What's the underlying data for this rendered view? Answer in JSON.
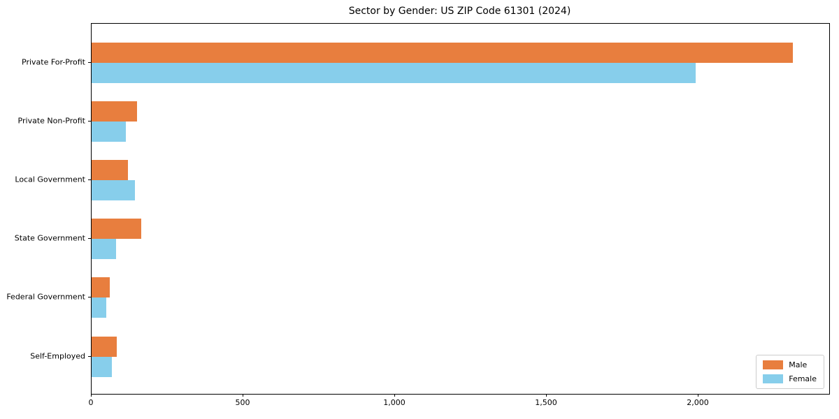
{
  "chart_data": {
    "type": "bar",
    "orientation": "horizontal",
    "title": "Sector by Gender: US ZIP Code 61301 (2024)",
    "xlabel": "",
    "ylabel": "",
    "categories": [
      "Private For-Profit",
      "Private Non-Profit",
      "Local Government",
      "State Government",
      "Federal Government",
      "Self-Employed"
    ],
    "series": [
      {
        "name": "Male",
        "color": "#e87e3e",
        "values": [
          2310,
          150,
          120,
          164,
          60,
          83
        ]
      },
      {
        "name": "Female",
        "color": "#87ceeb",
        "values": [
          1990,
          112,
          143,
          81,
          48,
          67
        ]
      }
    ],
    "xlim": [
      0,
      2430
    ],
    "xticks": [
      0,
      500,
      1000,
      1500,
      2000
    ],
    "xtick_labels": [
      "0",
      "500",
      "1,000",
      "1,500",
      "2,000"
    ],
    "grid": false,
    "legend_position": "lower right",
    "legend_labels": [
      "Male",
      "Female"
    ]
  },
  "style": {
    "male_color": "#e87e3e",
    "female_color": "#87ceeb",
    "spine_color": "#000000",
    "legend_border_color": "#cccccc",
    "background_color": "#ffffff"
  }
}
